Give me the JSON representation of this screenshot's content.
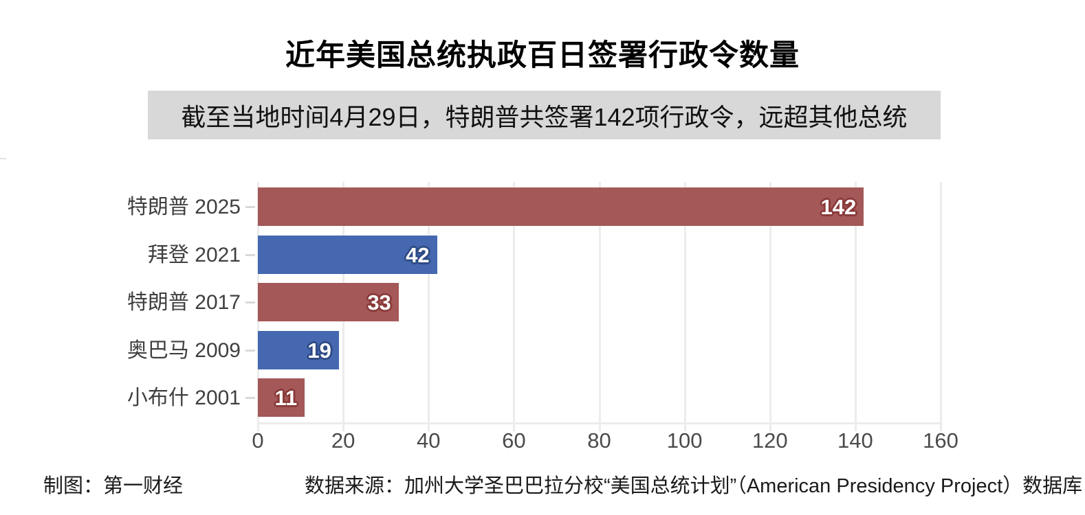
{
  "title": {
    "text": "近年美国总统执政百日签署行政令数量"
  },
  "subtitle": {
    "text": "截至当地时间4月29日，特朗普共签署142项行政令，远超其他总统",
    "bg": "#d8d8d8"
  },
  "chart_data": {
    "type": "bar",
    "orientation": "horizontal",
    "title": "近年美国总统执政百日签署行政令数量",
    "categories": [
      "特朗普 2025",
      "拜登 2021",
      "特朗普 2017",
      "奥巴马 2009",
      "小布什 2001"
    ],
    "values": [
      142,
      42,
      33,
      19,
      11
    ],
    "bar_color_keys": [
      "red",
      "blue",
      "red",
      "blue",
      "red"
    ],
    "value_labels": [
      "142",
      "42",
      "33",
      "19",
      "11"
    ],
    "xlim": [
      0,
      160
    ],
    "x_ticks": [
      0,
      20,
      40,
      60,
      80,
      100,
      120,
      140,
      160
    ],
    "grid": true,
    "legend": false
  },
  "colors": {
    "red": "#a45858",
    "blue": "#4568b0",
    "red_outline": "#8b3a3a",
    "blue_outline": "#2e4b85",
    "grid": "#ececec",
    "tick": "#d9d9d9"
  },
  "footer": {
    "left": "制图：第一财经",
    "right": "数据来源：加州大学圣巴巴拉分校“美国总统计划”（American Presidency Project）数据库"
  }
}
